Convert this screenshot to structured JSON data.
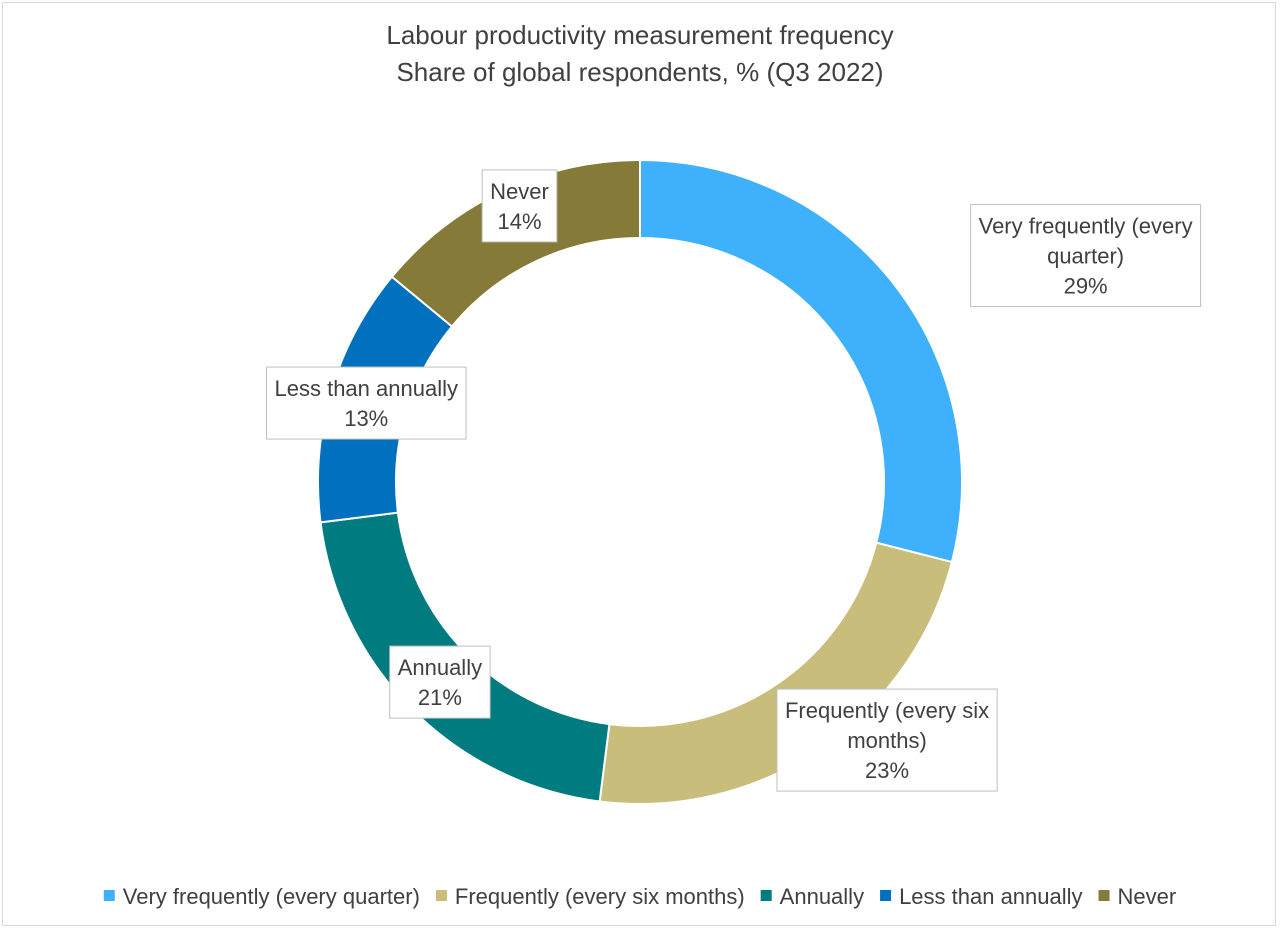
{
  "chart_data": {
    "type": "pie",
    "variant": "donut",
    "title": "Labour productivity measurement frequency",
    "subtitle": "Share of global respondents, % (Q3 2022)",
    "legend_position": "bottom",
    "slices": [
      {
        "name": "Very frequently (every quarter)",
        "value": 29,
        "label": "29%",
        "color": "#3fb1fc",
        "callout_lines": [
          "Very frequently (every",
          "quarter)"
        ]
      },
      {
        "name": "Frequently (every six months)",
        "value": 23,
        "label": "23%",
        "color": "#c8bd7a",
        "callout_lines": [
          "Frequently (every six",
          "months)"
        ]
      },
      {
        "name": "Annually",
        "value": 21,
        "label": "21%",
        "color": "#007c80",
        "callout_lines": [
          "Annually"
        ]
      },
      {
        "name": "Less than annually",
        "value": 13,
        "label": "13%",
        "color": "#0070bf",
        "callout_lines": [
          "Less than annually"
        ]
      },
      {
        "name": "Never",
        "value": 14,
        "label": "14%",
        "color": "#857a38",
        "callout_lines": [
          "Never"
        ]
      }
    ]
  }
}
